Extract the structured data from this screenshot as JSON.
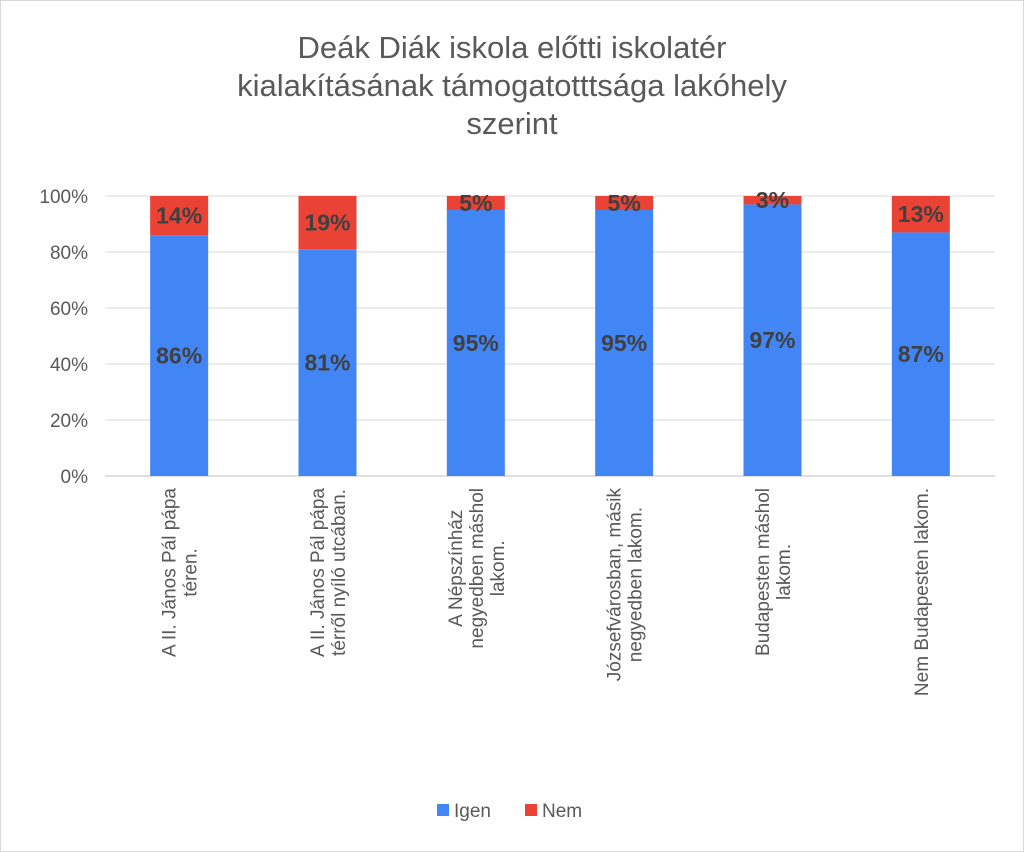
{
  "chart_data": {
    "type": "bar",
    "stacked": true,
    "title_lines": [
      "Deák Diák iskola előtti iskolatér",
      "kialakításának támogatotttsága lakóhely",
      "szerint"
    ],
    "categories": [
      [
        "A II. János Pál pápa",
        "téren."
      ],
      [
        "A II. János Pál pápa",
        "térről nyíló utcában."
      ],
      [
        "A Népszínház",
        "negyedben máshol",
        "lakom."
      ],
      [
        "Józsefvárosban, másik",
        "negyedben lakom."
      ],
      [
        "Budapesten máshol",
        "lakom."
      ],
      [
        "Nem Budapesten lakom."
      ]
    ],
    "series": [
      {
        "name": "Igen",
        "color": "#4285f4",
        "values": [
          86,
          81,
          95,
          95,
          97,
          87
        ],
        "labels": [
          "86%",
          "81%",
          "95%",
          "95%",
          "97%",
          "87%"
        ]
      },
      {
        "name": "Nem",
        "color": "#ea4335",
        "values": [
          14,
          19,
          5,
          5,
          3,
          13
        ],
        "labels": [
          "14%",
          "19%",
          "5%",
          "5%",
          "3%",
          "13%"
        ]
      }
    ],
    "yticks": [
      "0%",
      "20%",
      "40%",
      "60%",
      "80%",
      "100%"
    ],
    "ylim": [
      0,
      100
    ],
    "grid": true,
    "legend_position": "bottom"
  }
}
